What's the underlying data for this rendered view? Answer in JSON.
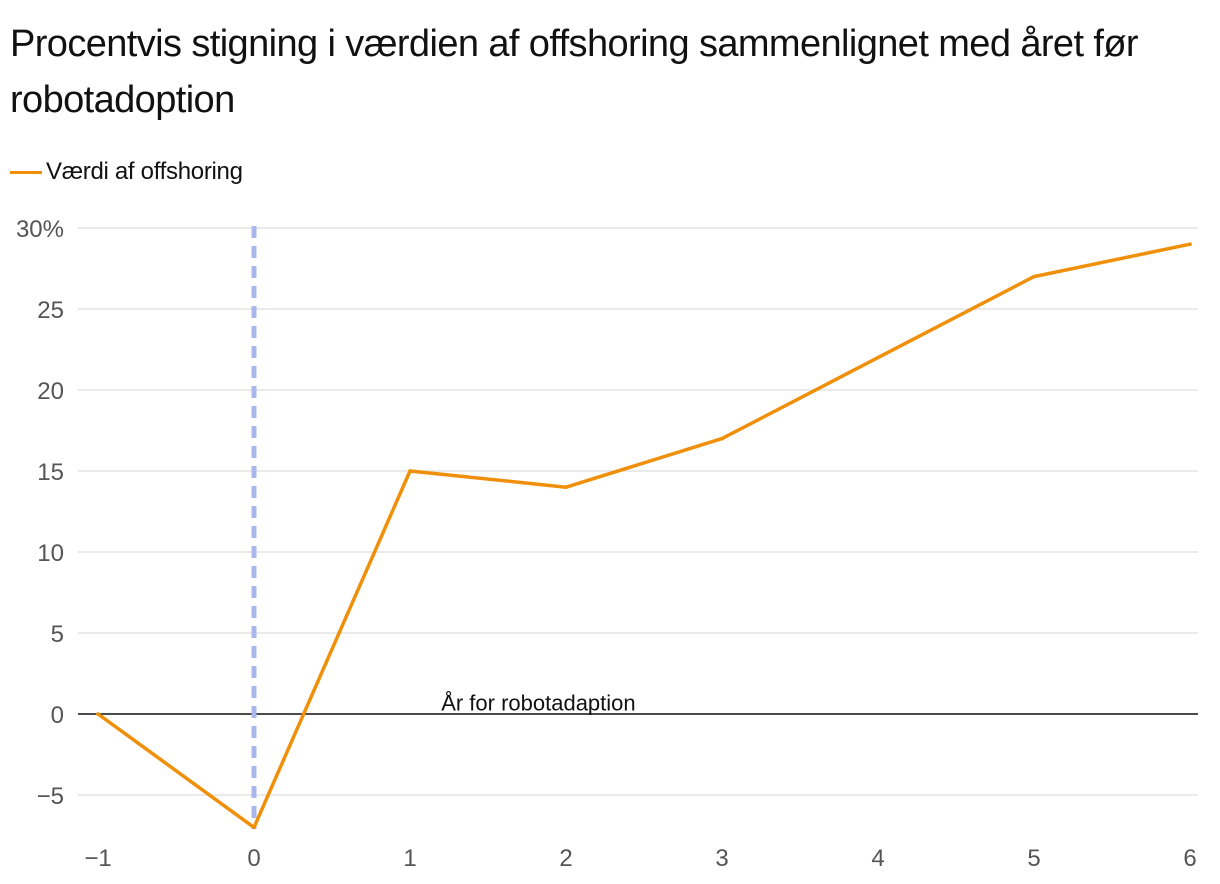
{
  "title": "Procentvis stigning i værdien af offshoring sammenlignet med året før robotadoption",
  "legend": [
    {
      "name": "Værdi af offshoring",
      "color": "#f0900a"
    }
  ],
  "chart_data": {
    "type": "line",
    "title": "Procentvis stigning i værdien af offshoring sammenlignet med året før robotadoption",
    "xlabel": "",
    "ylabel": "",
    "x": [
      -1,
      0,
      1,
      2,
      3,
      4,
      5,
      6
    ],
    "series": [
      {
        "name": "Værdi af offshoring",
        "color": "#f0900a",
        "values": [
          0,
          -7,
          15,
          14,
          17,
          22,
          27,
          29
        ]
      }
    ],
    "xlim": [
      -1,
      6
    ],
    "ylim": [
      -7,
      30
    ],
    "x_ticks": [
      -1,
      0,
      1,
      2,
      3,
      4,
      5,
      6
    ],
    "x_tick_labels": [
      "−1",
      "0",
      "1",
      "2",
      "3",
      "4",
      "5",
      "6"
    ],
    "y_ticks": [
      30,
      25,
      20,
      15,
      10,
      5,
      0,
      -5
    ],
    "y_tick_labels": [
      "30%",
      "25",
      "20",
      "15",
      "10",
      "5",
      "0",
      "−5"
    ],
    "grid": true,
    "legend_position": "top-left",
    "annotations": [
      {
        "text": "År for robotadaption",
        "x": 1.2,
        "y": 0.7
      }
    ],
    "reference_line": {
      "x": 0,
      "style": "dashed",
      "color": "#a9b7ea"
    },
    "zero_line_color": "#111111",
    "grid_color": "#e3e3e3"
  }
}
